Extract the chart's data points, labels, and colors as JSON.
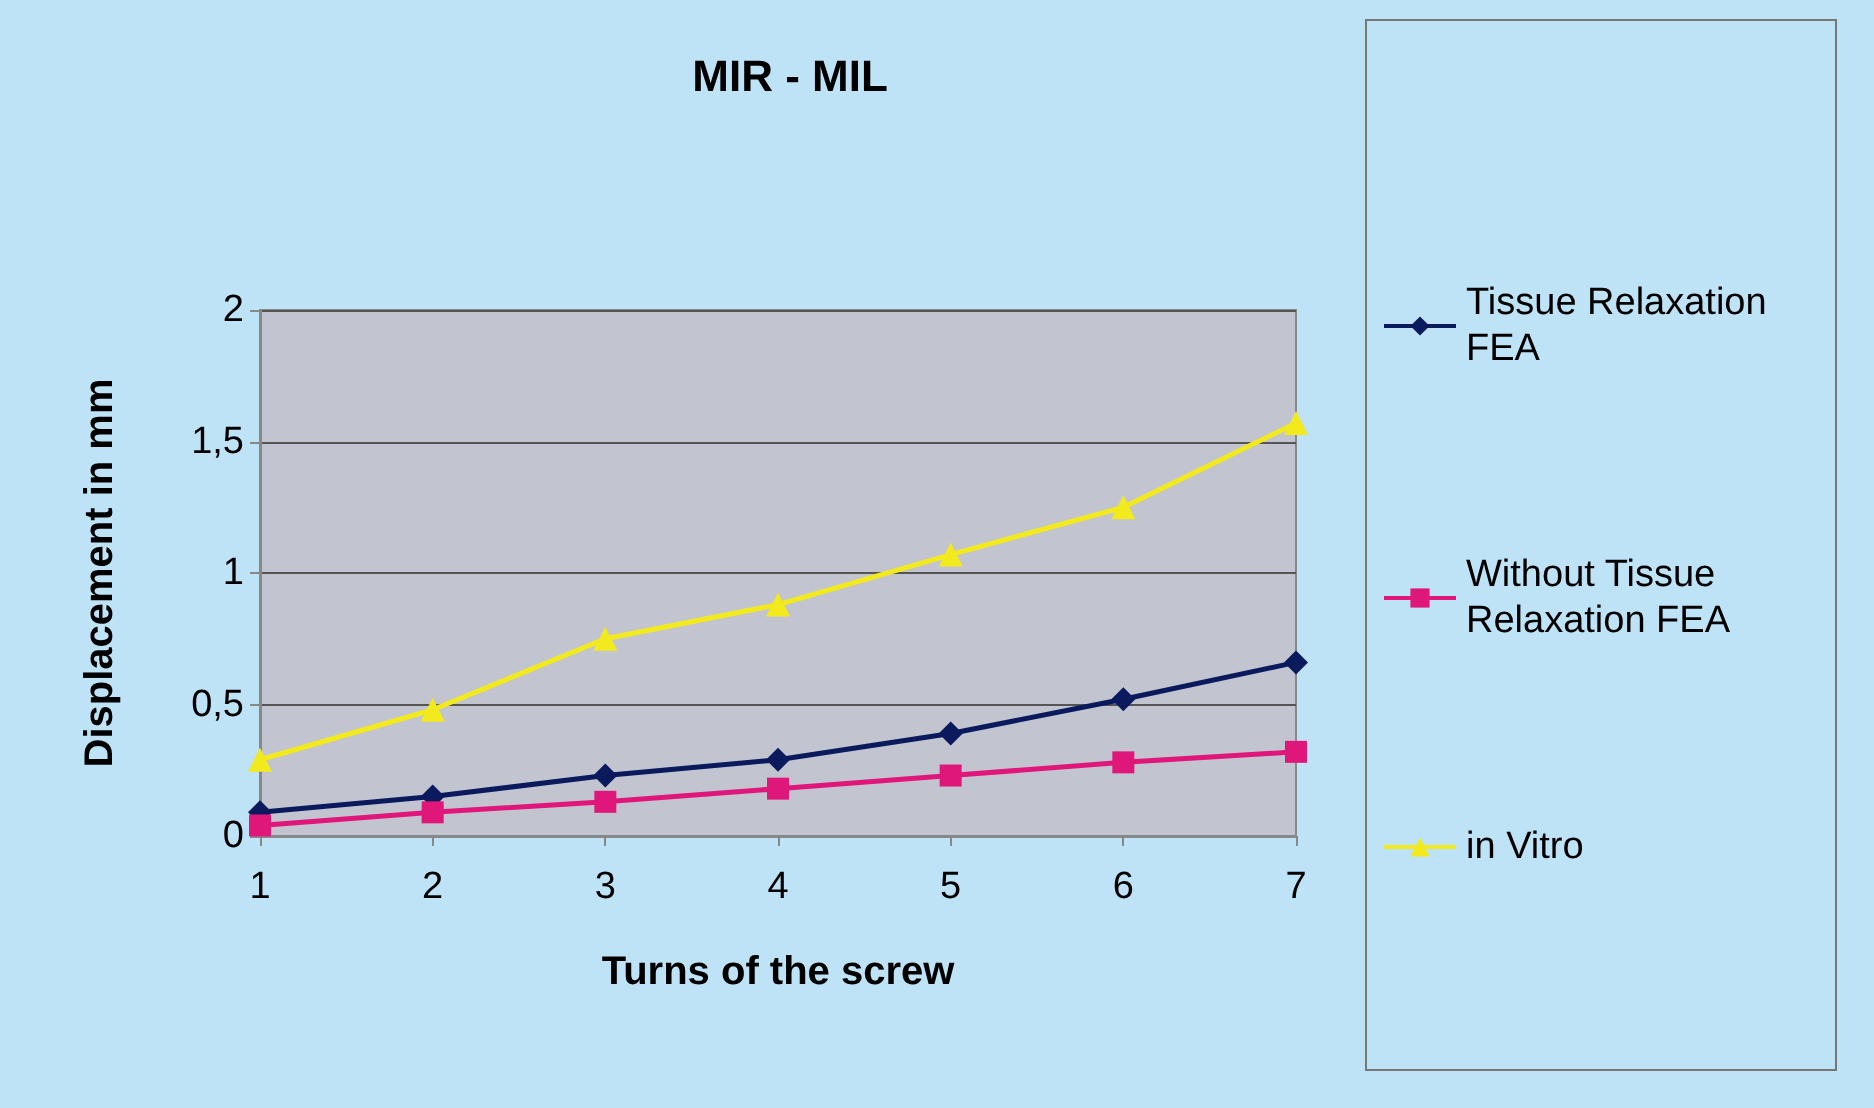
{
  "chart_data": {
    "type": "line",
    "title": "MIR - MIL",
    "xlabel": "Turns of the screw",
    "ylabel": "Displacement in mm",
    "categories": [
      "1",
      "2",
      "3",
      "4",
      "5",
      "6",
      "7"
    ],
    "series": [
      {
        "name": "Tissue Relaxation FEA",
        "color": "#0a1a5c",
        "marker": "diamond",
        "values": [
          0.09,
          0.15,
          0.23,
          0.29,
          0.39,
          0.52,
          0.66
        ]
      },
      {
        "name": "Without Tissue Relaxation FEA",
        "color": "#e0177a",
        "marker": "square",
        "values": [
          0.04,
          0.09,
          0.13,
          0.18,
          0.23,
          0.28,
          0.32
        ]
      },
      {
        "name": "in Vitro",
        "color": "#f2ea1c",
        "marker": "triangle",
        "values": [
          0.29,
          0.48,
          0.75,
          0.88,
          1.07,
          1.25,
          1.57
        ]
      }
    ],
    "ylim": [
      0,
      2
    ],
    "yticks": [
      0,
      {
        "value": 0.5,
        "label": "0,5"
      },
      1,
      {
        "value": 1.5,
        "label": "1,5"
      },
      2
    ],
    "grid": "y",
    "legend": "right",
    "line_style": "solid"
  }
}
